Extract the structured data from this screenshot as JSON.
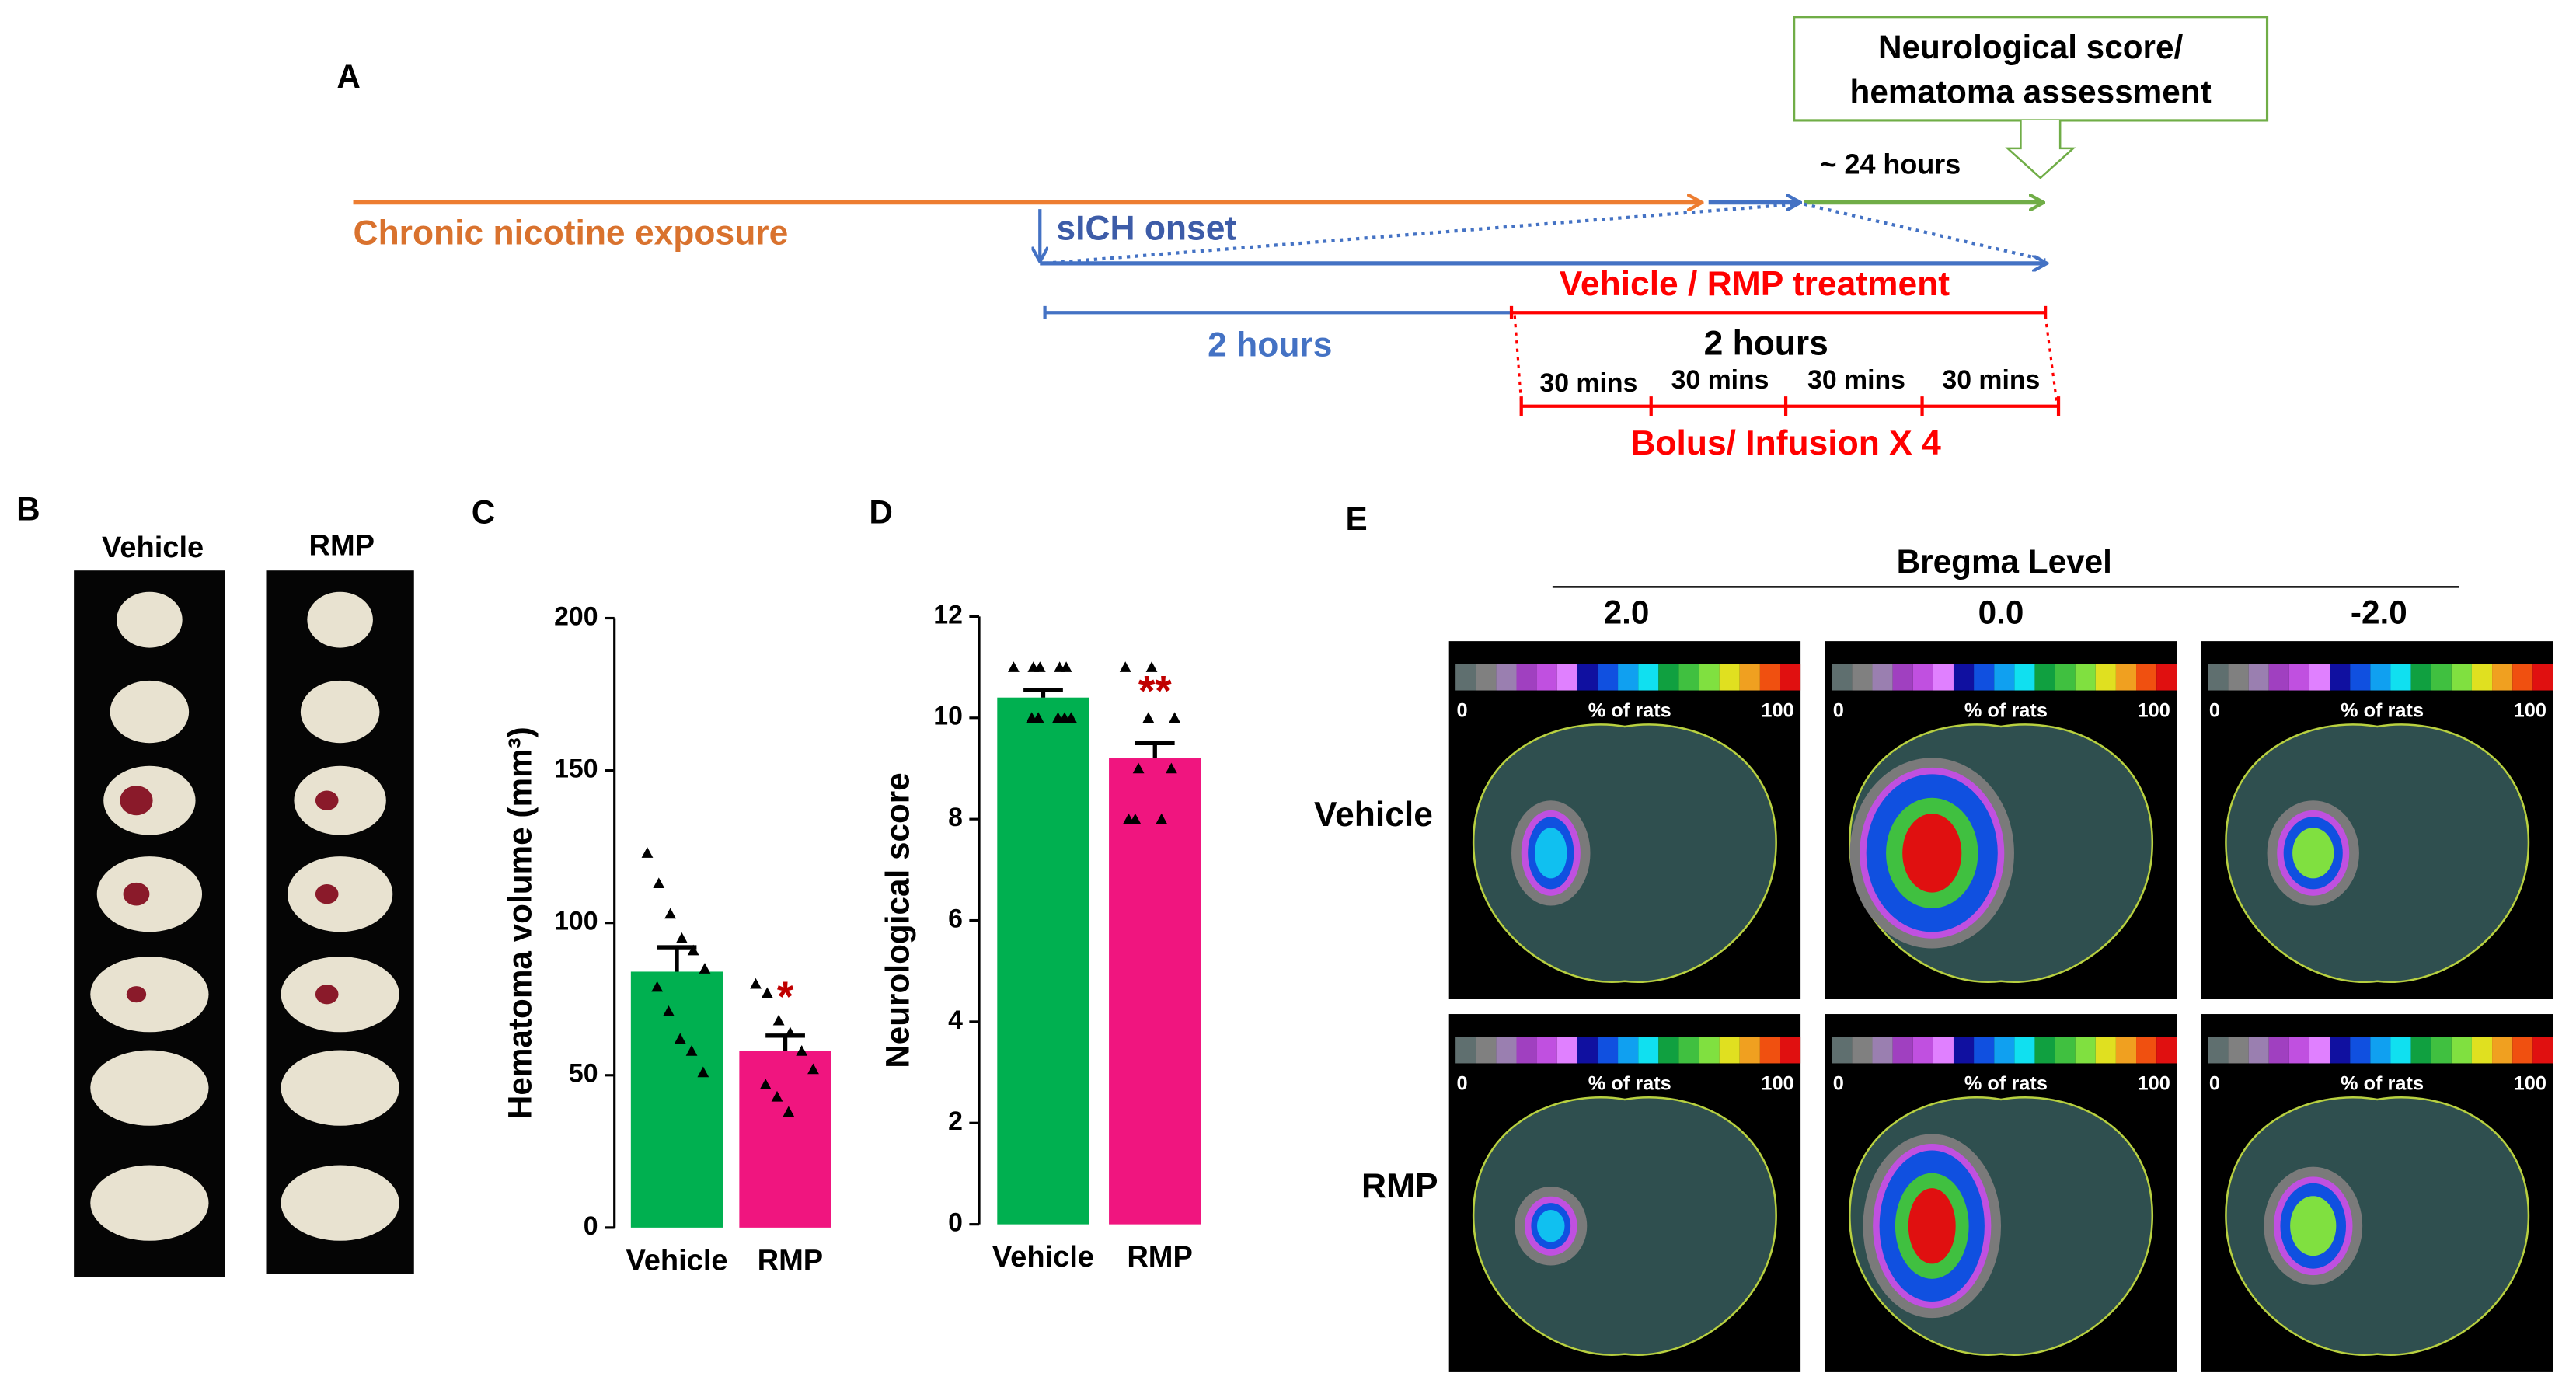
{
  "panel_labels": {
    "a": "A",
    "b": "B",
    "c": "C",
    "d": "D",
    "e": "E"
  },
  "timeline": {
    "assessment_box": [
      "Neurological score/",
      "hematoma assessment"
    ],
    "delay": "~ 24 hours",
    "exposure": "Chronic nicotine exposure",
    "onset": "sICH onset",
    "treatment": "Vehicle / RMP treatment",
    "pre_treatment_interval": "2 hours",
    "treatment_interval": "2 hours",
    "sub_intervals": [
      "30 mins",
      "30 mins",
      "30 mins",
      "30 mins"
    ],
    "regimen": "Bolus/ Infusion X 4"
  },
  "panel_b": {
    "columns": [
      "Vehicle",
      "RMP"
    ]
  },
  "chart_data": [
    {
      "type": "bar",
      "y_label": "Hematoma volume (mm³)",
      "categories": [
        "Vehicle",
        "RMP"
      ],
      "values": [
        84,
        58
      ],
      "errors": [
        8,
        5
      ],
      "colors": [
        "#00b050",
        "#f0157f"
      ],
      "points": [
        [
          123,
          113,
          103,
          95,
          91,
          85,
          79,
          71,
          62,
          58,
          51
        ],
        [
          80,
          77,
          68,
          64,
          58,
          52,
          47,
          43,
          38
        ]
      ],
      "annotation": "*",
      "ylim": [
        0,
        200
      ],
      "yticks": [
        0,
        50,
        100,
        150,
        200
      ]
    },
    {
      "type": "bar",
      "y_label": "Neurological score",
      "categories": [
        "Vehicle",
        "RMP"
      ],
      "values": [
        10.4,
        9.2
      ],
      "errors": [
        0.15,
        0.3
      ],
      "colors": [
        "#00b050",
        "#f0157f"
      ],
      "points": [
        [
          11,
          11,
          11,
          11,
          11,
          10,
          10,
          10,
          10,
          10
        ],
        [
          11,
          11,
          10,
          10,
          9,
          9,
          8,
          8,
          8
        ]
      ],
      "annotation": "**",
      "ylim": [
        0,
        12
      ],
      "yticks": [
        0,
        2,
        4,
        6,
        8,
        10,
        12
      ]
    }
  ],
  "panel_e": {
    "title": "Bregma Level",
    "levels": [
      "2.0",
      "0.0",
      "-2.0"
    ],
    "rows": [
      "Vehicle",
      "RMP"
    ],
    "colorbar": {
      "min": "0",
      "label": "% of rats",
      "max": "100"
    }
  }
}
